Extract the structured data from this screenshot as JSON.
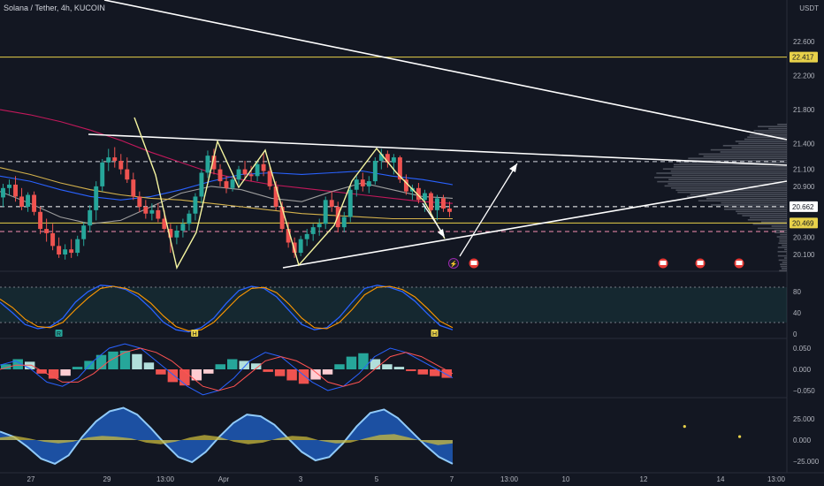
{
  "header": {
    "symbol_title": "Solana / Tether, 4h, KUCOIN",
    "currency": "USDT"
  },
  "chart_data": {
    "type": "candlestick",
    "main_pane": {
      "y_ticks": [
        "22.600",
        "22.200",
        "21.800",
        "21.400",
        "21.100",
        "20.900",
        "20.300",
        "20.100"
      ],
      "y_tick_values": [
        22.6,
        22.2,
        21.8,
        21.4,
        21.1,
        20.9,
        20.3,
        20.1
      ],
      "price_labels": [
        {
          "text": "22.417",
          "value": 22.417,
          "color": "#e8d14a",
          "text_color": "#131722"
        },
        {
          "text": "20.662",
          "value": 20.662,
          "color": "#ffffff",
          "text_color": "#131722"
        },
        {
          "text": "20.469",
          "value": 20.469,
          "color": "#e8d14a",
          "text_color": "#131722"
        }
      ],
      "horizontal_levels": [
        {
          "value": 22.417,
          "style": "solid",
          "color": "#e8d14a"
        },
        {
          "value": 21.19,
          "style": "dashed",
          "color": "#d1d4dc"
        },
        {
          "value": 20.662,
          "style": "dashed",
          "color": "#ffffff"
        },
        {
          "value": 20.469,
          "style": "solid",
          "color": "#e8d14a"
        },
        {
          "value": 20.37,
          "style": "dashed",
          "color": "#f48fb1"
        }
      ],
      "candles": [
        {
          "o": 20.77,
          "h": 20.93,
          "l": 20.66,
          "c": 20.88
        },
        {
          "o": 20.88,
          "h": 20.98,
          "l": 20.8,
          "c": 20.92
        },
        {
          "o": 20.92,
          "h": 21.02,
          "l": 20.72,
          "c": 20.78
        },
        {
          "o": 20.78,
          "h": 20.88,
          "l": 20.62,
          "c": 20.66
        },
        {
          "o": 20.66,
          "h": 20.83,
          "l": 20.6,
          "c": 20.8
        },
        {
          "o": 20.8,
          "h": 20.84,
          "l": 20.56,
          "c": 20.6
        },
        {
          "o": 20.6,
          "h": 20.66,
          "l": 20.34,
          "c": 20.4
        },
        {
          "o": 20.4,
          "h": 20.52,
          "l": 20.25,
          "c": 20.35
        },
        {
          "o": 20.35,
          "h": 20.46,
          "l": 20.15,
          "c": 20.2
        },
        {
          "o": 20.2,
          "h": 20.3,
          "l": 20.06,
          "c": 20.1
        },
        {
          "o": 20.1,
          "h": 20.22,
          "l": 20.04,
          "c": 20.16
        },
        {
          "o": 20.16,
          "h": 20.28,
          "l": 20.06,
          "c": 20.12
        },
        {
          "o": 20.12,
          "h": 20.32,
          "l": 20.08,
          "c": 20.28
        },
        {
          "o": 20.28,
          "h": 20.48,
          "l": 20.2,
          "c": 20.44
        },
        {
          "o": 20.44,
          "h": 20.68,
          "l": 20.36,
          "c": 20.62
        },
        {
          "o": 20.62,
          "h": 20.96,
          "l": 20.5,
          "c": 20.9
        },
        {
          "o": 20.9,
          "h": 21.22,
          "l": 20.84,
          "c": 21.18
        },
        {
          "o": 21.18,
          "h": 21.34,
          "l": 21.08,
          "c": 21.24
        },
        {
          "o": 21.24,
          "h": 21.36,
          "l": 21.12,
          "c": 21.2
        },
        {
          "o": 21.2,
          "h": 21.28,
          "l": 21.04,
          "c": 21.1
        },
        {
          "o": 21.1,
          "h": 21.24,
          "l": 20.94,
          "c": 20.98
        },
        {
          "o": 20.98,
          "h": 21.06,
          "l": 20.74,
          "c": 20.78
        },
        {
          "o": 20.78,
          "h": 20.84,
          "l": 20.6,
          "c": 20.66
        },
        {
          "o": 20.66,
          "h": 20.74,
          "l": 20.52,
          "c": 20.58
        },
        {
          "o": 20.58,
          "h": 20.7,
          "l": 20.5,
          "c": 20.62
        },
        {
          "o": 20.62,
          "h": 20.7,
          "l": 20.48,
          "c": 20.52
        },
        {
          "o": 20.52,
          "h": 20.62,
          "l": 20.36,
          "c": 20.4
        },
        {
          "o": 20.4,
          "h": 20.46,
          "l": 20.12,
          "c": 20.3
        },
        {
          "o": 20.3,
          "h": 20.44,
          "l": 20.22,
          "c": 20.38
        },
        {
          "o": 20.38,
          "h": 20.52,
          "l": 20.3,
          "c": 20.46
        },
        {
          "o": 20.46,
          "h": 20.62,
          "l": 20.38,
          "c": 20.58
        },
        {
          "o": 20.58,
          "h": 20.82,
          "l": 20.5,
          "c": 20.78
        },
        {
          "o": 20.78,
          "h": 21.1,
          "l": 20.7,
          "c": 21.06
        },
        {
          "o": 21.06,
          "h": 21.32,
          "l": 21.0,
          "c": 21.26
        },
        {
          "o": 21.26,
          "h": 21.34,
          "l": 21.04,
          "c": 21.1
        },
        {
          "o": 21.1,
          "h": 21.16,
          "l": 20.9,
          "c": 20.96
        },
        {
          "o": 20.96,
          "h": 21.02,
          "l": 20.82,
          "c": 20.88
        },
        {
          "o": 20.88,
          "h": 21.02,
          "l": 20.84,
          "c": 20.98
        },
        {
          "o": 20.98,
          "h": 21.14,
          "l": 20.92,
          "c": 21.1
        },
        {
          "o": 21.1,
          "h": 21.2,
          "l": 20.98,
          "c": 21.04
        },
        {
          "o": 21.04,
          "h": 21.14,
          "l": 20.96,
          "c": 21.02
        },
        {
          "o": 21.02,
          "h": 21.2,
          "l": 20.96,
          "c": 21.16
        },
        {
          "o": 21.16,
          "h": 21.3,
          "l": 21.02,
          "c": 21.08
        },
        {
          "o": 21.08,
          "h": 21.14,
          "l": 20.86,
          "c": 20.9
        },
        {
          "o": 20.9,
          "h": 20.96,
          "l": 20.62,
          "c": 20.66
        },
        {
          "o": 20.66,
          "h": 20.72,
          "l": 20.36,
          "c": 20.4
        },
        {
          "o": 20.4,
          "h": 20.48,
          "l": 20.18,
          "c": 20.24
        },
        {
          "o": 20.24,
          "h": 20.3,
          "l": 20.06,
          "c": 20.12
        },
        {
          "o": 20.12,
          "h": 20.32,
          "l": 20.08,
          "c": 20.28
        },
        {
          "o": 20.28,
          "h": 20.4,
          "l": 20.2,
          "c": 20.34
        },
        {
          "o": 20.34,
          "h": 20.46,
          "l": 20.26,
          "c": 20.42
        },
        {
          "o": 20.42,
          "h": 20.52,
          "l": 20.32,
          "c": 20.46
        },
        {
          "o": 20.46,
          "h": 20.78,
          "l": 20.4,
          "c": 20.74
        },
        {
          "o": 20.74,
          "h": 20.84,
          "l": 20.6,
          "c": 20.66
        },
        {
          "o": 20.66,
          "h": 20.72,
          "l": 20.36,
          "c": 20.42
        },
        {
          "o": 20.42,
          "h": 20.6,
          "l": 20.36,
          "c": 20.54
        },
        {
          "o": 20.54,
          "h": 20.9,
          "l": 20.48,
          "c": 20.86
        },
        {
          "o": 20.86,
          "h": 21.02,
          "l": 20.78,
          "c": 20.98
        },
        {
          "o": 20.98,
          "h": 21.06,
          "l": 20.84,
          "c": 20.9
        },
        {
          "o": 20.9,
          "h": 21.02,
          "l": 20.82,
          "c": 20.96
        },
        {
          "o": 20.96,
          "h": 21.24,
          "l": 20.92,
          "c": 21.2
        },
        {
          "o": 21.2,
          "h": 21.34,
          "l": 21.1,
          "c": 21.28
        },
        {
          "o": 21.28,
          "h": 21.32,
          "l": 21.12,
          "c": 21.18
        },
        {
          "o": 21.18,
          "h": 21.28,
          "l": 21.04,
          "c": 21.24
        },
        {
          "o": 21.24,
          "h": 21.26,
          "l": 20.94,
          "c": 20.98
        },
        {
          "o": 20.98,
          "h": 21.04,
          "l": 20.8,
          "c": 20.84
        },
        {
          "o": 20.84,
          "h": 20.92,
          "l": 20.74,
          "c": 20.88
        },
        {
          "o": 20.88,
          "h": 20.94,
          "l": 20.7,
          "c": 20.74
        },
        {
          "o": 20.74,
          "h": 20.86,
          "l": 20.6,
          "c": 20.82
        },
        {
          "o": 20.82,
          "h": 20.84,
          "l": 20.56,
          "c": 20.62
        },
        {
          "o": 20.62,
          "h": 20.8,
          "l": 20.5,
          "c": 20.76
        },
        {
          "o": 20.76,
          "h": 20.8,
          "l": 20.6,
          "c": 20.64
        },
        {
          "o": 20.64,
          "h": 20.72,
          "l": 20.54,
          "c": 20.6
        }
      ],
      "moving_averages": [
        {
          "color": "#c2185b",
          "values": [
            21.8,
            21.74,
            21.66,
            21.56,
            21.44,
            21.3,
            21.18,
            21.06,
            20.98,
            20.92,
            20.88,
            20.84,
            20.8,
            20.76,
            20.72,
            20.7
          ]
        },
        {
          "color": "#2962ff",
          "values": [
            21.02,
            20.96,
            20.86,
            20.78,
            20.74,
            20.78,
            20.86,
            20.96,
            21.04,
            21.06,
            21.04,
            21.06,
            21.08,
            21.02,
            20.98,
            20.92
          ]
        },
        {
          "color": "#9e9e9e",
          "values": [
            20.84,
            20.7,
            20.54,
            20.46,
            20.5,
            20.66,
            20.82,
            20.9,
            20.86,
            20.76,
            20.72,
            20.84,
            20.94,
            20.86,
            20.78,
            20.76
          ]
        },
        {
          "color": "#d4b24c",
          "values": [
            21.12,
            21.04,
            20.94,
            20.86,
            20.8,
            20.76,
            20.74,
            20.7,
            20.66,
            20.62,
            20.58,
            20.56,
            20.54,
            20.52,
            20.52,
            20.52
          ]
        }
      ]
    },
    "stoch_pane": {
      "y_ticks": [
        "80",
        "40",
        "0"
      ],
      "y_tick_values": [
        80,
        40,
        0
      ],
      "range": [
        0,
        100
      ],
      "k_values": [
        60,
        40,
        18,
        10,
        14,
        30,
        60,
        80,
        92,
        90,
        84,
        70,
        48,
        22,
        8,
        4,
        12,
        30,
        58,
        82,
        90,
        86,
        70,
        44,
        18,
        8,
        12,
        32,
        60,
        86,
        92,
        88,
        80,
        62,
        38,
        16,
        8
      ],
      "d_values": [
        66,
        50,
        28,
        14,
        12,
        22,
        46,
        68,
        86,
        90,
        86,
        76,
        58,
        34,
        14,
        6,
        8,
        22,
        46,
        70,
        86,
        88,
        78,
        56,
        30,
        12,
        10,
        22,
        46,
        74,
        88,
        90,
        84,
        70,
        48,
        24,
        12
      ],
      "markers": [
        {
          "text": "R",
          "pos": 0.13,
          "color": "#26a69a"
        },
        {
          "text": "H",
          "pos": 0.43,
          "color": "#e8d14a"
        },
        {
          "text": "H",
          "pos": 0.96,
          "color": "#e8d14a"
        }
      ]
    },
    "macd_pane": {
      "y_ticks": [
        "0.050",
        "0.000",
        "−0.050"
      ],
      "y_tick_values": [
        0.05,
        0.0,
        -0.05
      ],
      "range": [
        -0.07,
        0.08
      ],
      "histogram": [
        0.012,
        0.024,
        0.018,
        -0.01,
        -0.022,
        -0.015,
        0.006,
        0.02,
        0.034,
        0.042,
        0.044,
        0.036,
        0.016,
        -0.012,
        -0.03,
        -0.038,
        -0.026,
        -0.01,
        0.012,
        0.024,
        0.02,
        0.014,
        -0.006,
        -0.016,
        -0.026,
        -0.034,
        -0.024,
        -0.012,
        0.012,
        0.03,
        0.038,
        0.024,
        0.012,
        0.006,
        -0.004,
        -0.012,
        -0.016,
        -0.02
      ],
      "macd": [
        0.01,
        0.02,
        0.0,
        -0.03,
        -0.04,
        -0.02,
        0.02,
        0.05,
        0.06,
        0.05,
        0.02,
        -0.01,
        -0.04,
        -0.06,
        -0.05,
        -0.02,
        0.02,
        0.04,
        0.03,
        0.0,
        -0.03,
        -0.05,
        -0.04,
        -0.01,
        0.03,
        0.05,
        0.04,
        0.02,
        0.0,
        -0.02
      ],
      "signal": [
        0.0,
        0.01,
        0.01,
        -0.01,
        -0.03,
        -0.03,
        -0.01,
        0.02,
        0.04,
        0.05,
        0.04,
        0.02,
        -0.01,
        -0.04,
        -0.05,
        -0.04,
        -0.01,
        0.02,
        0.03,
        0.02,
        0.0,
        -0.03,
        -0.04,
        -0.03,
        0.0,
        0.03,
        0.04,
        0.03,
        0.01,
        -0.01
      ]
    },
    "osc_pane": {
      "y_ticks": [
        "25.000",
        "0.000",
        "−25.000"
      ],
      "y_tick_values": [
        25,
        0,
        -25
      ],
      "range": [
        -32,
        38
      ],
      "wave": [
        10,
        4,
        -8,
        -22,
        -28,
        -18,
        4,
        22,
        34,
        38,
        30,
        14,
        -4,
        -20,
        -26,
        -14,
        4,
        20,
        30,
        28,
        18,
        2,
        -14,
        -24,
        -20,
        -4,
        16,
        32,
        36,
        26,
        10,
        -6,
        -20,
        -28
      ],
      "fill_values": [
        3,
        5,
        2,
        -2,
        -4,
        -2,
        3,
        5,
        4,
        2,
        -3,
        -5,
        -2,
        3,
        6,
        4,
        -2,
        -5,
        -3,
        2,
        5,
        4,
        -1,
        -4,
        -3,
        2,
        6,
        7,
        3,
        -2,
        -6,
        -4
      ],
      "dots": [
        {
          "pos": 0.87,
          "value": 16,
          "color": "#e8d14a"
        },
        {
          "pos": 0.94,
          "value": 4,
          "color": "#e8d14a"
        }
      ]
    },
    "x_ticks": [
      "27",
      "29",
      "13:00",
      "Apr",
      "3",
      "5",
      "7",
      "13:00",
      "10",
      "12",
      "14",
      "13:00"
    ]
  }
}
